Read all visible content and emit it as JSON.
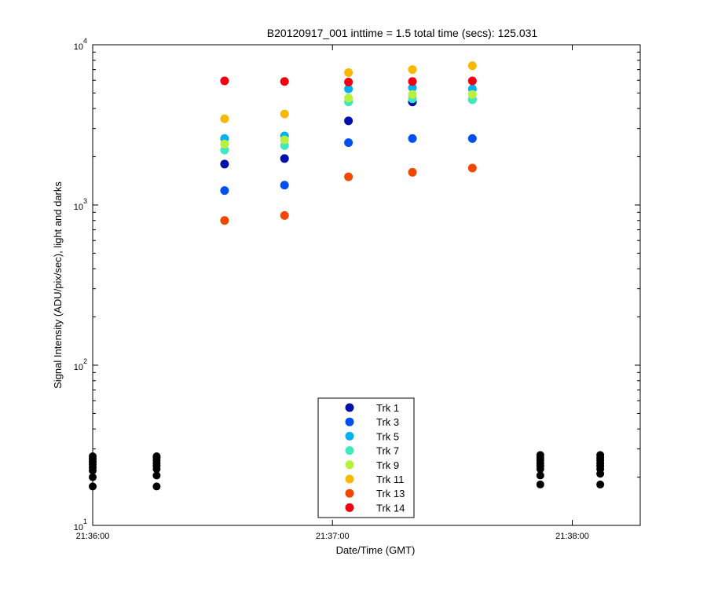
{
  "chart_data": {
    "type": "scatter",
    "title": "B20120917_001 inttime = 1.5 total time (secs): 125.031",
    "xlabel": "Date/Time (GMT)",
    "ylabel": "Signal Intensity (ADU/pix/sec), light and darks",
    "y_scale": "log",
    "ylim": [
      10,
      10000
    ],
    "y_tick_values": [
      10,
      100,
      1000,
      10000
    ],
    "y_tick_labels": [
      {
        "base": "10",
        "exp": "1"
      },
      {
        "base": "10",
        "exp": "2"
      },
      {
        "base": "10",
        "exp": "3"
      },
      {
        "base": "10",
        "exp": "4"
      }
    ],
    "xlim": [
      "21:36:00",
      "21:38:17"
    ],
    "x_tick_labels": [
      "21:36:00",
      "21:37:00",
      "21:38:00"
    ],
    "x_tick_values": [
      "21:36:00",
      "21:37:00",
      "21:38:00"
    ],
    "grid": false,
    "legend_position": "bottom-center",
    "darks": {
      "name": "darks",
      "color": "#000000",
      "x": [
        "21:36:00",
        "21:36:00",
        "21:36:00",
        "21:36:00",
        "21:36:00",
        "21:36:00",
        "21:36:00",
        "21:36:00",
        "21:36:16",
        "21:36:16",
        "21:36:16",
        "21:36:16",
        "21:36:16",
        "21:36:16",
        "21:36:16",
        "21:36:16",
        "21:37:52",
        "21:37:52",
        "21:37:52",
        "21:37:52",
        "21:37:52",
        "21:37:52",
        "21:37:52",
        "21:37:52",
        "21:38:07",
        "21:38:07",
        "21:38:07",
        "21:38:07",
        "21:38:07",
        "21:38:07",
        "21:38:07",
        "21:38:07"
      ],
      "y": [
        17.5,
        20.0,
        22.0,
        23.0,
        24.0,
        25.0,
        26.0,
        27.0,
        17.5,
        20.5,
        22.5,
        23.5,
        24.5,
        25.5,
        26.5,
        27.0,
        18.0,
        20.5,
        22.5,
        23.5,
        24.5,
        25.5,
        26.5,
        27.5,
        18.0,
        21.0,
        22.5,
        23.5,
        24.5,
        25.5,
        26.5,
        27.5
      ]
    },
    "x": [
      "21:36:33",
      "21:36:48",
      "21:37:04",
      "21:37:20",
      "21:37:35"
    ],
    "series": [
      {
        "name": "Trk 1",
        "color": "#0010a8",
        "values": [
          1800,
          1950,
          3350,
          4400,
          4550
        ]
      },
      {
        "name": "Trk 3",
        "color": "#0050f0",
        "values": [
          1230,
          1330,
          2450,
          2600,
          2600
        ]
      },
      {
        "name": "Trk 5",
        "color": "#00b0f0",
        "values": [
          2600,
          2700,
          5300,
          5400,
          5300
        ]
      },
      {
        "name": "Trk 7",
        "color": "#40e8c0",
        "values": [
          2200,
          2350,
          4400,
          4600,
          4550
        ]
      },
      {
        "name": "Trk 9",
        "color": "#b8f040",
        "values": [
          2400,
          2550,
          4650,
          4900,
          4900
        ]
      },
      {
        "name": "Trk 11",
        "color": "#f8b800",
        "values": [
          3450,
          3700,
          6700,
          7000,
          7400
        ]
      },
      {
        "name": "Trk 13",
        "color": "#f04800",
        "values": [
          800,
          860,
          1500,
          1600,
          1700
        ]
      },
      {
        "name": "Trk 14",
        "color": "#f00010",
        "values": [
          5950,
          5900,
          5850,
          5900,
          5950
        ]
      }
    ]
  }
}
